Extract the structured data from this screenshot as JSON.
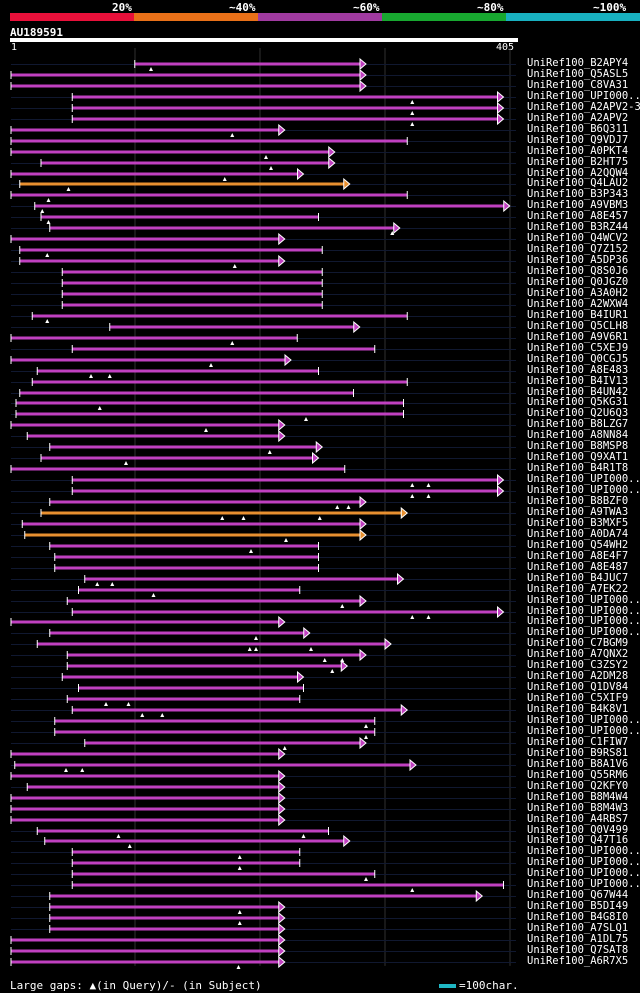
{
  "legend": {
    "labels": [
      "20%",
      "~40%",
      "~60%",
      "~80%",
      "~100%"
    ],
    "colors": [
      "#e8103a",
      "#e87018",
      "#a03aa0",
      "#18a830",
      "#18b0c0"
    ]
  },
  "query": {
    "id": "AU189591",
    "start": "1",
    "end": "405",
    "length": 405
  },
  "colors": {
    "high": "#c040c0",
    "orange": "#e89030",
    "track": "#101830",
    "gridline": "#303030"
  },
  "hits": [
    {
      "label": "UniRef100_B2APY4",
      "start": 100,
      "end": 285,
      "color": "high",
      "arrow": true,
      "marks": [
        113
      ]
    },
    {
      "label": "UniRef100_Q5ASL5",
      "start": 1,
      "end": 285,
      "color": "high",
      "arrow": true,
      "marks": []
    },
    {
      "label": "UniRef100_C8VA31",
      "start": 1,
      "end": 285,
      "color": "high",
      "arrow": true,
      "marks": []
    },
    {
      "label": "UniRef100_UPI000..",
      "start": 50,
      "end": 395,
      "color": "high",
      "arrow": true,
      "marks": [
        322
      ]
    },
    {
      "label": "UniRef100_A2APV2-3",
      "start": 50,
      "end": 395,
      "color": "high",
      "arrow": true,
      "marks": [
        322
      ]
    },
    {
      "label": "UniRef100_A2APV2",
      "start": 50,
      "end": 395,
      "color": "high",
      "arrow": true,
      "marks": [
        322
      ]
    },
    {
      "label": "UniRef100_B6Q311",
      "start": 1,
      "end": 220,
      "color": "high",
      "arrow": true,
      "marks": [
        178
      ]
    },
    {
      "label": "UniRef100_Q9VDJ7",
      "start": 1,
      "end": 318,
      "color": "high",
      "arrow": false,
      "marks": []
    },
    {
      "label": "UniRef100_A0PKT4",
      "start": 1,
      "end": 260,
      "color": "high",
      "arrow": true,
      "marks": [
        205
      ]
    },
    {
      "label": "UniRef100_B2HT75",
      "start": 25,
      "end": 260,
      "color": "high",
      "arrow": true,
      "marks": [
        209
      ]
    },
    {
      "label": "UniRef100_A2QQW4",
      "start": 1,
      "end": 235,
      "color": "high",
      "arrow": true,
      "marks": [
        172
      ]
    },
    {
      "label": "UniRef100_Q4LAU2",
      "start": 8,
      "end": 272,
      "color": "orange",
      "arrow": true,
      "marks": [
        47
      ]
    },
    {
      "label": "UniRef100_B3P343",
      "start": 1,
      "end": 318,
      "color": "high",
      "arrow": false,
      "marks": [
        31
      ]
    },
    {
      "label": "UniRef100_A9VBM3",
      "start": 20,
      "end": 400,
      "color": "high",
      "arrow": true,
      "marks": [
        26
      ]
    },
    {
      "label": "UniRef100_A8E457",
      "start": 25,
      "end": 247,
      "color": "high",
      "arrow": false,
      "marks": [
        31
      ]
    },
    {
      "label": "UniRef100_B3RZ44",
      "start": 32,
      "end": 312,
      "color": "high",
      "arrow": true,
      "marks": [
        306
      ]
    },
    {
      "label": "UniRef100_Q4WCV2",
      "start": 1,
      "end": 220,
      "color": "high",
      "arrow": true,
      "marks": []
    },
    {
      "label": "UniRef100_Q7Z152",
      "start": 8,
      "end": 250,
      "color": "high",
      "arrow": false,
      "marks": [
        30
      ]
    },
    {
      "label": "UniRef100_A5DP36",
      "start": 8,
      "end": 220,
      "color": "high",
      "arrow": true,
      "marks": [
        180
      ]
    },
    {
      "label": "UniRef100_Q8S0J6",
      "start": 42,
      "end": 250,
      "color": "high",
      "arrow": false,
      "marks": []
    },
    {
      "label": "UniRef100_Q0JGZ0",
      "start": 42,
      "end": 250,
      "color": "high",
      "arrow": false,
      "marks": []
    },
    {
      "label": "UniRef100_A3A0H2",
      "start": 42,
      "end": 250,
      "color": "high",
      "arrow": false,
      "marks": []
    },
    {
      "label": "UniRef100_A2WXW4",
      "start": 42,
      "end": 250,
      "color": "high",
      "arrow": false,
      "marks": []
    },
    {
      "label": "UniRef100_B4IUR1",
      "start": 18,
      "end": 318,
      "color": "high",
      "arrow": false,
      "marks": [
        30
      ]
    },
    {
      "label": "UniRef100_Q5CLH8",
      "start": 80,
      "end": 280,
      "color": "high",
      "arrow": true,
      "marks": []
    },
    {
      "label": "UniRef100_A9V6R1",
      "start": 1,
      "end": 230,
      "color": "high",
      "arrow": false,
      "marks": [
        178
      ]
    },
    {
      "label": "UniRef100_C5XEJ9",
      "start": 50,
      "end": 292,
      "color": "high",
      "arrow": false,
      "marks": []
    },
    {
      "label": "UniRef100_Q0CGJ5",
      "start": 1,
      "end": 225,
      "color": "high",
      "arrow": true,
      "marks": [
        161
      ]
    },
    {
      "label": "UniRef100_A8E483",
      "start": 22,
      "end": 247,
      "color": "high",
      "arrow": false,
      "marks": [
        65,
        80
      ]
    },
    {
      "label": "UniRef100_B4IV13",
      "start": 18,
      "end": 318,
      "color": "high",
      "arrow": false,
      "marks": []
    },
    {
      "label": "UniRef100_B4UN42",
      "start": 8,
      "end": 275,
      "color": "high",
      "arrow": false,
      "marks": []
    },
    {
      "label": "UniRef100_Q5KG31",
      "start": 5,
      "end": 315,
      "color": "high",
      "arrow": false,
      "marks": [
        72
      ]
    },
    {
      "label": "UniRef100_Q2U6Q3",
      "start": 5,
      "end": 315,
      "color": "high",
      "arrow": false,
      "marks": [
        237
      ]
    },
    {
      "label": "UniRef100_B8LZG7",
      "start": 1,
      "end": 220,
      "color": "high",
      "arrow": true,
      "marks": [
        157
      ]
    },
    {
      "label": "UniRef100_A8NN84",
      "start": 14,
      "end": 220,
      "color": "high",
      "arrow": true,
      "marks": []
    },
    {
      "label": "UniRef100_B8MSP8",
      "start": 32,
      "end": 250,
      "color": "high",
      "arrow": true,
      "marks": [
        208
      ]
    },
    {
      "label": "UniRef100_Q9XAT1",
      "start": 25,
      "end": 247,
      "color": "high",
      "arrow": true,
      "marks": [
        93
      ]
    },
    {
      "label": "UniRef100_B4R1T8",
      "start": 1,
      "end": 268,
      "color": "high",
      "arrow": false,
      "marks": []
    },
    {
      "label": "UniRef100_UPI000..",
      "start": 50,
      "end": 395,
      "color": "high",
      "arrow": true,
      "marks": [
        322,
        335
      ]
    },
    {
      "label": "UniRef100_UPI000..",
      "start": 50,
      "end": 395,
      "color": "high",
      "arrow": true,
      "marks": [
        322,
        335
      ]
    },
    {
      "label": "UniRef100_B8BZF0",
      "start": 32,
      "end": 285,
      "color": "high",
      "arrow": true,
      "marks": [
        262,
        271
      ]
    },
    {
      "label": "UniRef100_A9TWA3",
      "start": 25,
      "end": 318,
      "color": "orange",
      "arrow": true,
      "marks": [
        170,
        187,
        248
      ]
    },
    {
      "label": "UniRef100_B3MXF5",
      "start": 10,
      "end": 285,
      "color": "high",
      "arrow": true,
      "marks": []
    },
    {
      "label": "UniRef100_A0DA74",
      "start": 12,
      "end": 285,
      "color": "orange",
      "arrow": true,
      "marks": [
        221
      ]
    },
    {
      "label": "UniRef100_Q54WH2",
      "start": 32,
      "end": 247,
      "color": "high",
      "arrow": false,
      "marks": [
        193
      ]
    },
    {
      "label": "UniRef100_A8E4F7",
      "start": 36,
      "end": 247,
      "color": "high",
      "arrow": false,
      "marks": []
    },
    {
      "label": "UniRef100_A8E487",
      "start": 36,
      "end": 247,
      "color": "high",
      "arrow": false,
      "marks": []
    },
    {
      "label": "UniRef100_B4JUC7",
      "start": 60,
      "end": 315,
      "color": "high",
      "arrow": true,
      "marks": [
        70,
        82
      ]
    },
    {
      "label": "UniRef100_A7EK22",
      "start": 55,
      "end": 232,
      "color": "high",
      "arrow": false,
      "marks": [
        115
      ]
    },
    {
      "label": "UniRef100_UPI000..",
      "start": 46,
      "end": 285,
      "color": "high",
      "arrow": true,
      "marks": [
        266
      ]
    },
    {
      "label": "UniRef100_UPI000..",
      "start": 50,
      "end": 395,
      "color": "high",
      "arrow": true,
      "marks": [
        322,
        335
      ]
    },
    {
      "label": "UniRef100_UPI000..",
      "start": 1,
      "end": 220,
      "color": "high",
      "arrow": true,
      "marks": []
    },
    {
      "label": "UniRef100_UPI000..",
      "start": 32,
      "end": 240,
      "color": "high",
      "arrow": true,
      "marks": [
        197
      ]
    },
    {
      "label": "UniRef100_C7BGM9",
      "start": 22,
      "end": 305,
      "color": "high",
      "arrow": true,
      "marks": [
        192,
        197,
        241
      ]
    },
    {
      "label": "UniRef100_A7QNX2",
      "start": 46,
      "end": 285,
      "color": "high",
      "arrow": true,
      "marks": [
        252,
        266
      ]
    },
    {
      "label": "UniRef100_C3ZSY2",
      "start": 46,
      "end": 270,
      "color": "high",
      "arrow": true,
      "marks": [
        258
      ]
    },
    {
      "label": "UniRef100_A2DM28",
      "start": 42,
      "end": 235,
      "color": "high",
      "arrow": true,
      "marks": []
    },
    {
      "label": "UniRef100_Q1DV84",
      "start": 55,
      "end": 235,
      "color": "high",
      "arrow": false,
      "marks": []
    },
    {
      "label": "UniRef100_C5XIF9",
      "start": 46,
      "end": 232,
      "color": "high",
      "arrow": false,
      "marks": [
        77,
        95
      ]
    },
    {
      "label": "UniRef100_B4K8V1",
      "start": 50,
      "end": 318,
      "color": "high",
      "arrow": true,
      "marks": [
        106,
        122
      ]
    },
    {
      "label": "UniRef100_UPI000..",
      "start": 36,
      "end": 292,
      "color": "high",
      "arrow": false,
      "marks": [
        285
      ]
    },
    {
      "label": "UniRef100_UPI000..",
      "start": 36,
      "end": 292,
      "color": "high",
      "arrow": false,
      "marks": [
        285
      ]
    },
    {
      "label": "UniRef100_C1FIW7",
      "start": 60,
      "end": 285,
      "color": "high",
      "arrow": true,
      "marks": [
        220
      ]
    },
    {
      "label": "UniRef100_B9RS81",
      "start": 1,
      "end": 220,
      "color": "high",
      "arrow": true,
      "marks": []
    },
    {
      "label": "UniRef100_B8A1V6",
      "start": 4,
      "end": 325,
      "color": "high",
      "arrow": true,
      "marks": [
        45,
        58
      ]
    },
    {
      "label": "UniRef100_Q55RM6",
      "start": 1,
      "end": 220,
      "color": "high",
      "arrow": true,
      "marks": []
    },
    {
      "label": "UniRef100_Q2KFY0",
      "start": 14,
      "end": 220,
      "color": "high",
      "arrow": true,
      "marks": []
    },
    {
      "label": "UniRef100_B8M4W4",
      "start": 1,
      "end": 220,
      "color": "high",
      "arrow": true,
      "marks": []
    },
    {
      "label": "UniRef100_B8M4W3",
      "start": 1,
      "end": 220,
      "color": "high",
      "arrow": true,
      "marks": []
    },
    {
      "label": "UniRef100_A4RBS7",
      "start": 1,
      "end": 220,
      "color": "high",
      "arrow": true,
      "marks": []
    },
    {
      "label": "UniRef100_Q0V499",
      "start": 22,
      "end": 255,
      "color": "high",
      "arrow": false,
      "marks": [
        87,
        235
      ]
    },
    {
      "label": "UniRef100_Q47T16",
      "start": 28,
      "end": 272,
      "color": "high",
      "arrow": true,
      "marks": [
        96
      ]
    },
    {
      "label": "UniRef100_UPI000..",
      "start": 50,
      "end": 232,
      "color": "high",
      "arrow": false,
      "marks": [
        184
      ]
    },
    {
      "label": "UniRef100_UPI000..",
      "start": 50,
      "end": 232,
      "color": "high",
      "arrow": false,
      "marks": [
        184
      ]
    },
    {
      "label": "UniRef100_UPI000..",
      "start": 50,
      "end": 292,
      "color": "high",
      "arrow": false,
      "marks": [
        285
      ]
    },
    {
      "label": "UniRef100_UPI000..",
      "start": 50,
      "end": 395,
      "color": "high",
      "arrow": false,
      "marks": [
        322
      ]
    },
    {
      "label": "UniRef100_Q67W44",
      "start": 32,
      "end": 378,
      "color": "high",
      "arrow": true,
      "marks": []
    },
    {
      "label": "UniRef100_B5DI49",
      "start": 32,
      "end": 220,
      "color": "high",
      "arrow": true,
      "marks": [
        184
      ]
    },
    {
      "label": "UniRef100_B4G8I0",
      "start": 32,
      "end": 220,
      "color": "high",
      "arrow": true,
      "marks": [
        184
      ]
    },
    {
      "label": "UniRef100_A7SLQ1",
      "start": 32,
      "end": 220,
      "color": "high",
      "arrow": true,
      "marks": []
    },
    {
      "label": "UniRef100_A1DL75",
      "start": 1,
      "end": 220,
      "color": "high",
      "arrow": true,
      "marks": []
    },
    {
      "label": "UniRef100_Q7SAT8",
      "start": 1,
      "end": 220,
      "color": "high",
      "arrow": true,
      "marks": []
    },
    {
      "label": "UniRef100_A6R7X5",
      "start": 1,
      "end": 220,
      "color": "high",
      "arrow": true,
      "marks": [
        183
      ]
    }
  ],
  "footer": {
    "text": "Large gaps: ▲(in Query)/- (in Subject)",
    "scale_color": "#1fb7c4",
    "scale_text": "=100char."
  }
}
